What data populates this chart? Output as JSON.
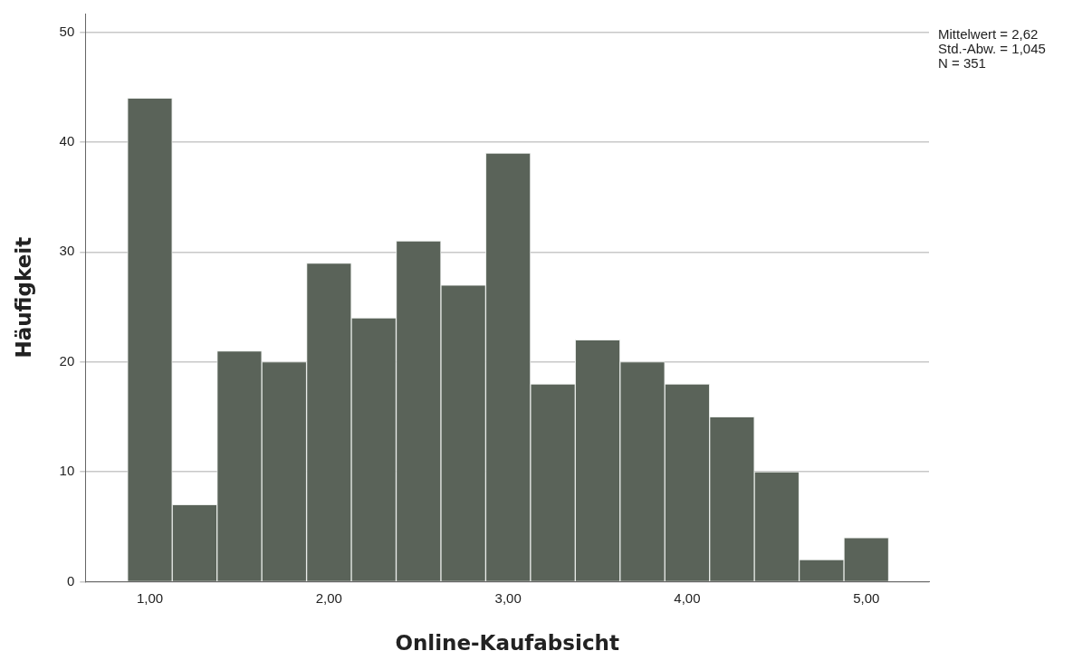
{
  "chart_data": {
    "type": "histogram",
    "xlabel": "Online-Kaufabsicht",
    "ylabel": "Häufigkeit",
    "bins": [
      0.875,
      1.125,
      1.375,
      1.625,
      1.875,
      2.125,
      2.375,
      2.625,
      2.875,
      3.125,
      3.375,
      3.625,
      3.875,
      4.125,
      4.375,
      4.625,
      4.875,
      5.125
    ],
    "values": [
      44,
      7,
      21,
      20,
      29,
      24,
      31,
      27,
      39,
      18,
      22,
      20,
      18,
      15,
      10,
      2,
      4
    ],
    "color": "#5a6359",
    "xlim": [
      0.64,
      5.35
    ],
    "xticks": [
      {
        "value": 1,
        "label": "1,00"
      },
      {
        "value": 2,
        "label": "2,00"
      },
      {
        "value": 3,
        "label": "3,00"
      },
      {
        "value": 4,
        "label": "4,00"
      },
      {
        "value": 5,
        "label": "5,00"
      }
    ],
    "ylim": [
      0,
      51.7
    ],
    "yticks": [
      0,
      10,
      20,
      30,
      40,
      50
    ],
    "grid": "y",
    "annotations": [
      "Mittelwert = 2,62",
      "Std.-Abw. = 1,045",
      "N = 351"
    ]
  }
}
